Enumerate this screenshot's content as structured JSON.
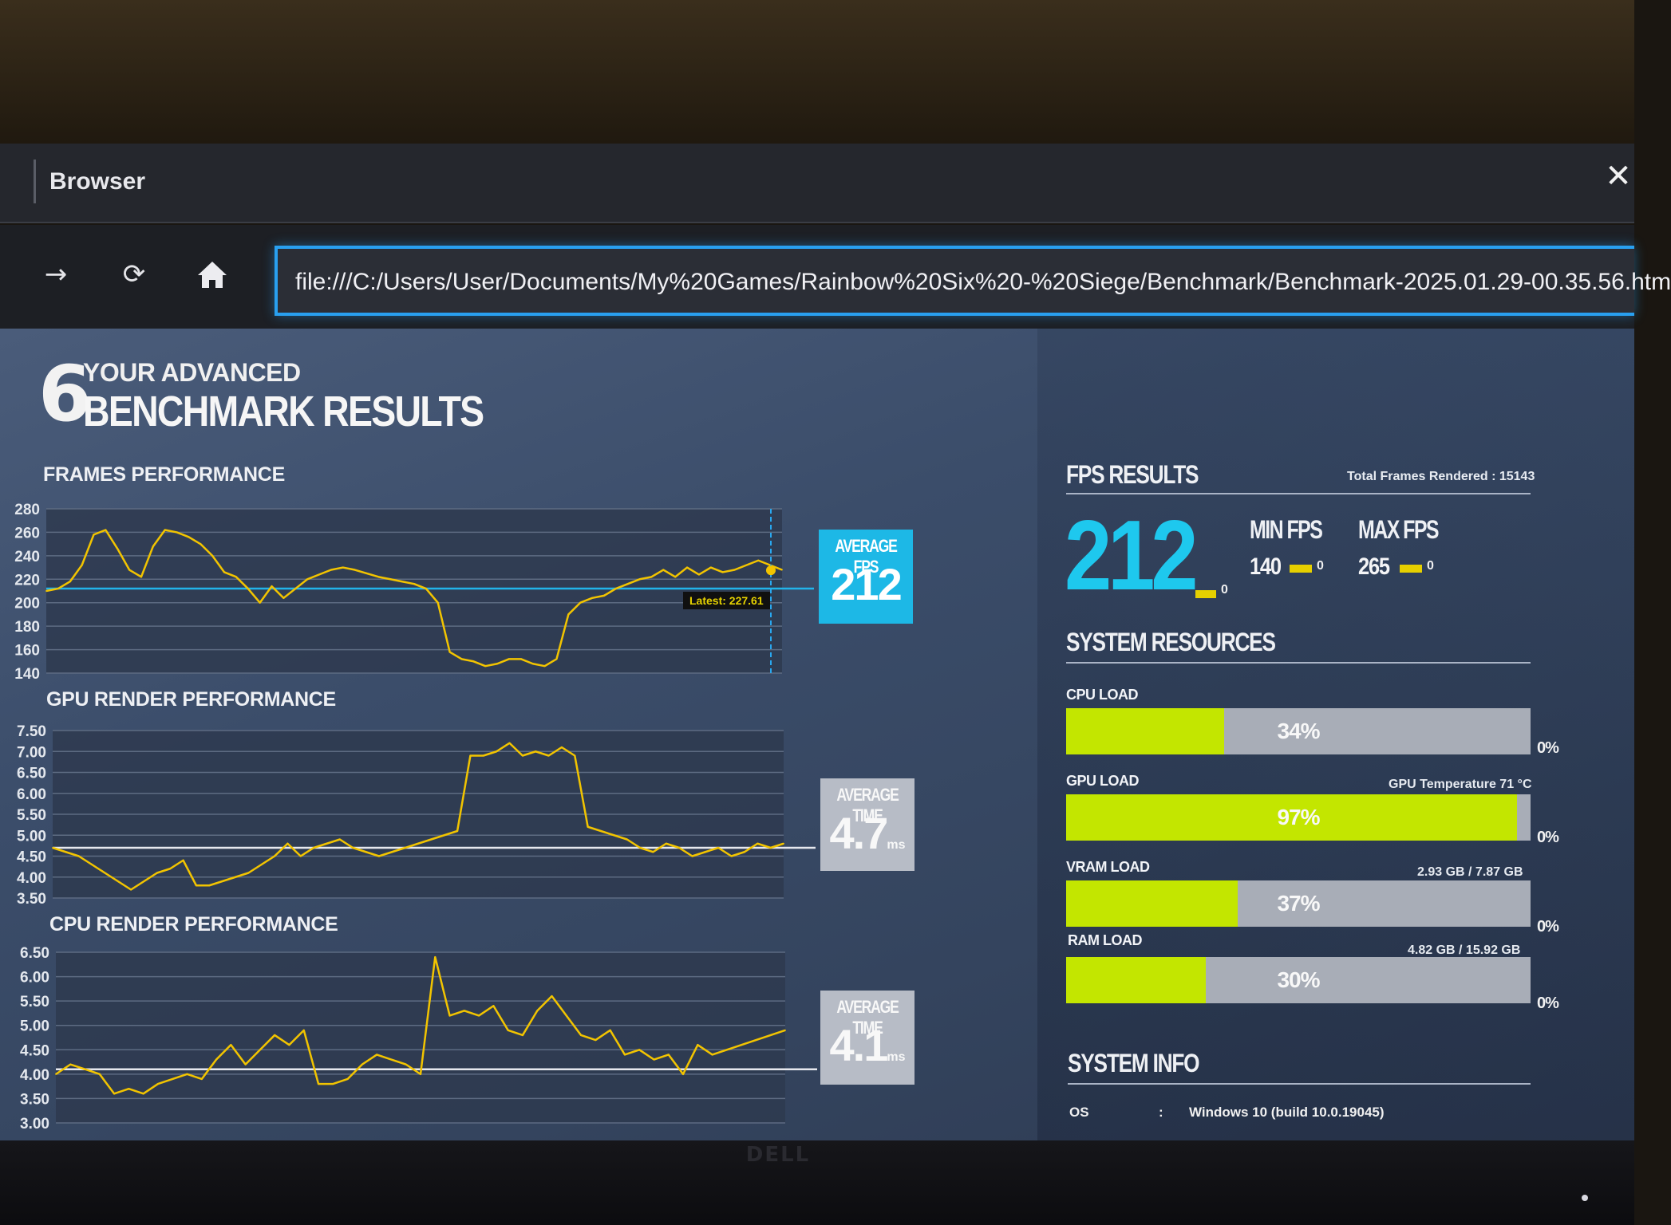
{
  "window": {
    "title": "Browser",
    "close_glyph": "✕"
  },
  "toolbar": {
    "forward_icon": "arrow-right-icon",
    "reload_icon": "reload-icon",
    "home_icon": "home-icon",
    "url": "file:///C:/Users/User/Documents/My%20Games/Rainbow%20Six%20-%20Siege/Benchmark/Benchmark-2025.01.29-00.35.56.htm"
  },
  "header": {
    "logo_glyph": "6",
    "line1": "YOUR ADVANCED",
    "line2": "BENCHMARK RESULTS"
  },
  "frames": {
    "title": "FRAMES PERFORMANCE",
    "avg_label": "AVERAGE FPS",
    "avg_value": "212",
    "latest_tip": "Latest: 227.61"
  },
  "gpu": {
    "title": "GPU RENDER PERFORMANCE",
    "avg_label": "AVERAGE TIME",
    "avg_value": "4.7",
    "avg_unit": "ms"
  },
  "cpu": {
    "title": "CPU RENDER PERFORMANCE",
    "avg_label": "AVERAGE TIME",
    "avg_value": "4.1",
    "avg_unit": "ms"
  },
  "fps_results": {
    "title": "FPS RESULTS",
    "total_frames": "Total Frames Rendered : 15143",
    "average": "212",
    "average_zero": "0",
    "min_label": "MIN FPS",
    "min_value": "140",
    "min_zero": "0",
    "max_label": "MAX FPS",
    "max_value": "265",
    "max_zero": "0",
    "accent_color": "#1ec8ee",
    "marker_color": "#e6d000"
  },
  "system_resources": {
    "title": "SYSTEM RESOURCES",
    "bar_color": "#c3e600",
    "items": [
      {
        "label": "CPU LOAD",
        "note": "",
        "percent": "34%",
        "fraction": 0.34,
        "zero": "0%"
      },
      {
        "label": "GPU LOAD",
        "note": "GPU Temperature 71 °C",
        "percent": "97%",
        "fraction": 0.97,
        "zero": "0%"
      },
      {
        "label": "VRAM LOAD",
        "note": "2.93 GB / 7.87 GB",
        "percent": "37%",
        "fraction": 0.37,
        "zero": "0%"
      },
      {
        "label": "RAM LOAD",
        "note": "4.82 GB / 15.92 GB",
        "percent": "30%",
        "fraction": 0.3,
        "zero": "0%"
      }
    ]
  },
  "system_info": {
    "title": "SYSTEM INFO",
    "rows": [
      {
        "key": "OS",
        "sep": ":",
        "value": "Windows 10 (build 10.0.19045)"
      }
    ]
  },
  "monitor": {
    "brand": "DELL"
  },
  "chart_data": [
    {
      "type": "line",
      "title": "FRAMES PERFORMANCE",
      "ylim": [
        140,
        280
      ],
      "yticks": [
        "280",
        "260",
        "240",
        "220",
        "200",
        "180",
        "160",
        "140"
      ],
      "grid": true,
      "series": [
        {
          "color": "#f2c400",
          "values": [
            210,
            212,
            218,
            232,
            258,
            262,
            246,
            228,
            222,
            248,
            262,
            260,
            256,
            250,
            240,
            226,
            222,
            212,
            200,
            214,
            204,
            212,
            220,
            224,
            228,
            230,
            228,
            225,
            222,
            220,
            218,
            216,
            212,
            200,
            158,
            152,
            150,
            146,
            148,
            152,
            152,
            148,
            146,
            152,
            190,
            200,
            204,
            206,
            212,
            216,
            220,
            222,
            228,
            222,
            230,
            224,
            230,
            226,
            228,
            232,
            236,
            232,
            228
          ]
        }
      ],
      "reference_line": 212,
      "latest": 227.61
    },
    {
      "type": "line",
      "title": "GPU RENDER PERFORMANCE",
      "ylim": [
        3.5,
        7.5
      ],
      "yticks": [
        "7.50",
        "7.00",
        "6.50",
        "6.00",
        "5.50",
        "5.00",
        "4.50",
        "4.00",
        "3.50"
      ],
      "grid": true,
      "series": [
        {
          "color": "#f2c400",
          "values": [
            4.7,
            4.6,
            4.5,
            4.3,
            4.1,
            3.9,
            3.7,
            3.9,
            4.1,
            4.2,
            4.4,
            3.8,
            3.8,
            3.9,
            4.0,
            4.1,
            4.3,
            4.5,
            4.8,
            4.5,
            4.7,
            4.8,
            4.9,
            4.7,
            4.6,
            4.5,
            4.6,
            4.7,
            4.8,
            4.9,
            5.0,
            5.1,
            6.9,
            6.9,
            7.0,
            7.2,
            6.9,
            7.0,
            6.9,
            7.1,
            6.9,
            5.2,
            5.1,
            5.0,
            4.9,
            4.7,
            4.6,
            4.8,
            4.7,
            4.5,
            4.6,
            4.7,
            4.5,
            4.6,
            4.8,
            4.7,
            4.8
          ]
        }
      ],
      "reference_line": 4.7
    },
    {
      "type": "line",
      "title": "CPU RENDER PERFORMANCE",
      "ylim": [
        3.0,
        6.5
      ],
      "yticks": [
        "6.50",
        "6.00",
        "5.50",
        "5.00",
        "4.50",
        "4.00",
        "3.50",
        "3.00"
      ],
      "grid": true,
      "series": [
        {
          "color": "#f2c400",
          "values": [
            4.0,
            4.2,
            4.1,
            4.0,
            3.6,
            3.7,
            3.6,
            3.8,
            3.9,
            4.0,
            3.9,
            4.3,
            4.6,
            4.2,
            4.5,
            4.8,
            4.6,
            4.9,
            3.8,
            3.8,
            3.9,
            4.2,
            4.4,
            4.3,
            4.2,
            4.0,
            6.4,
            5.2,
            5.3,
            5.2,
            5.4,
            4.9,
            4.8,
            5.3,
            5.6,
            5.2,
            4.8,
            4.7,
            4.9,
            4.4,
            4.5,
            4.3,
            4.4,
            4.0,
            4.6,
            4.4,
            4.5,
            4.6,
            4.7,
            4.8,
            4.9
          ]
        }
      ],
      "reference_line": 4.1
    }
  ]
}
